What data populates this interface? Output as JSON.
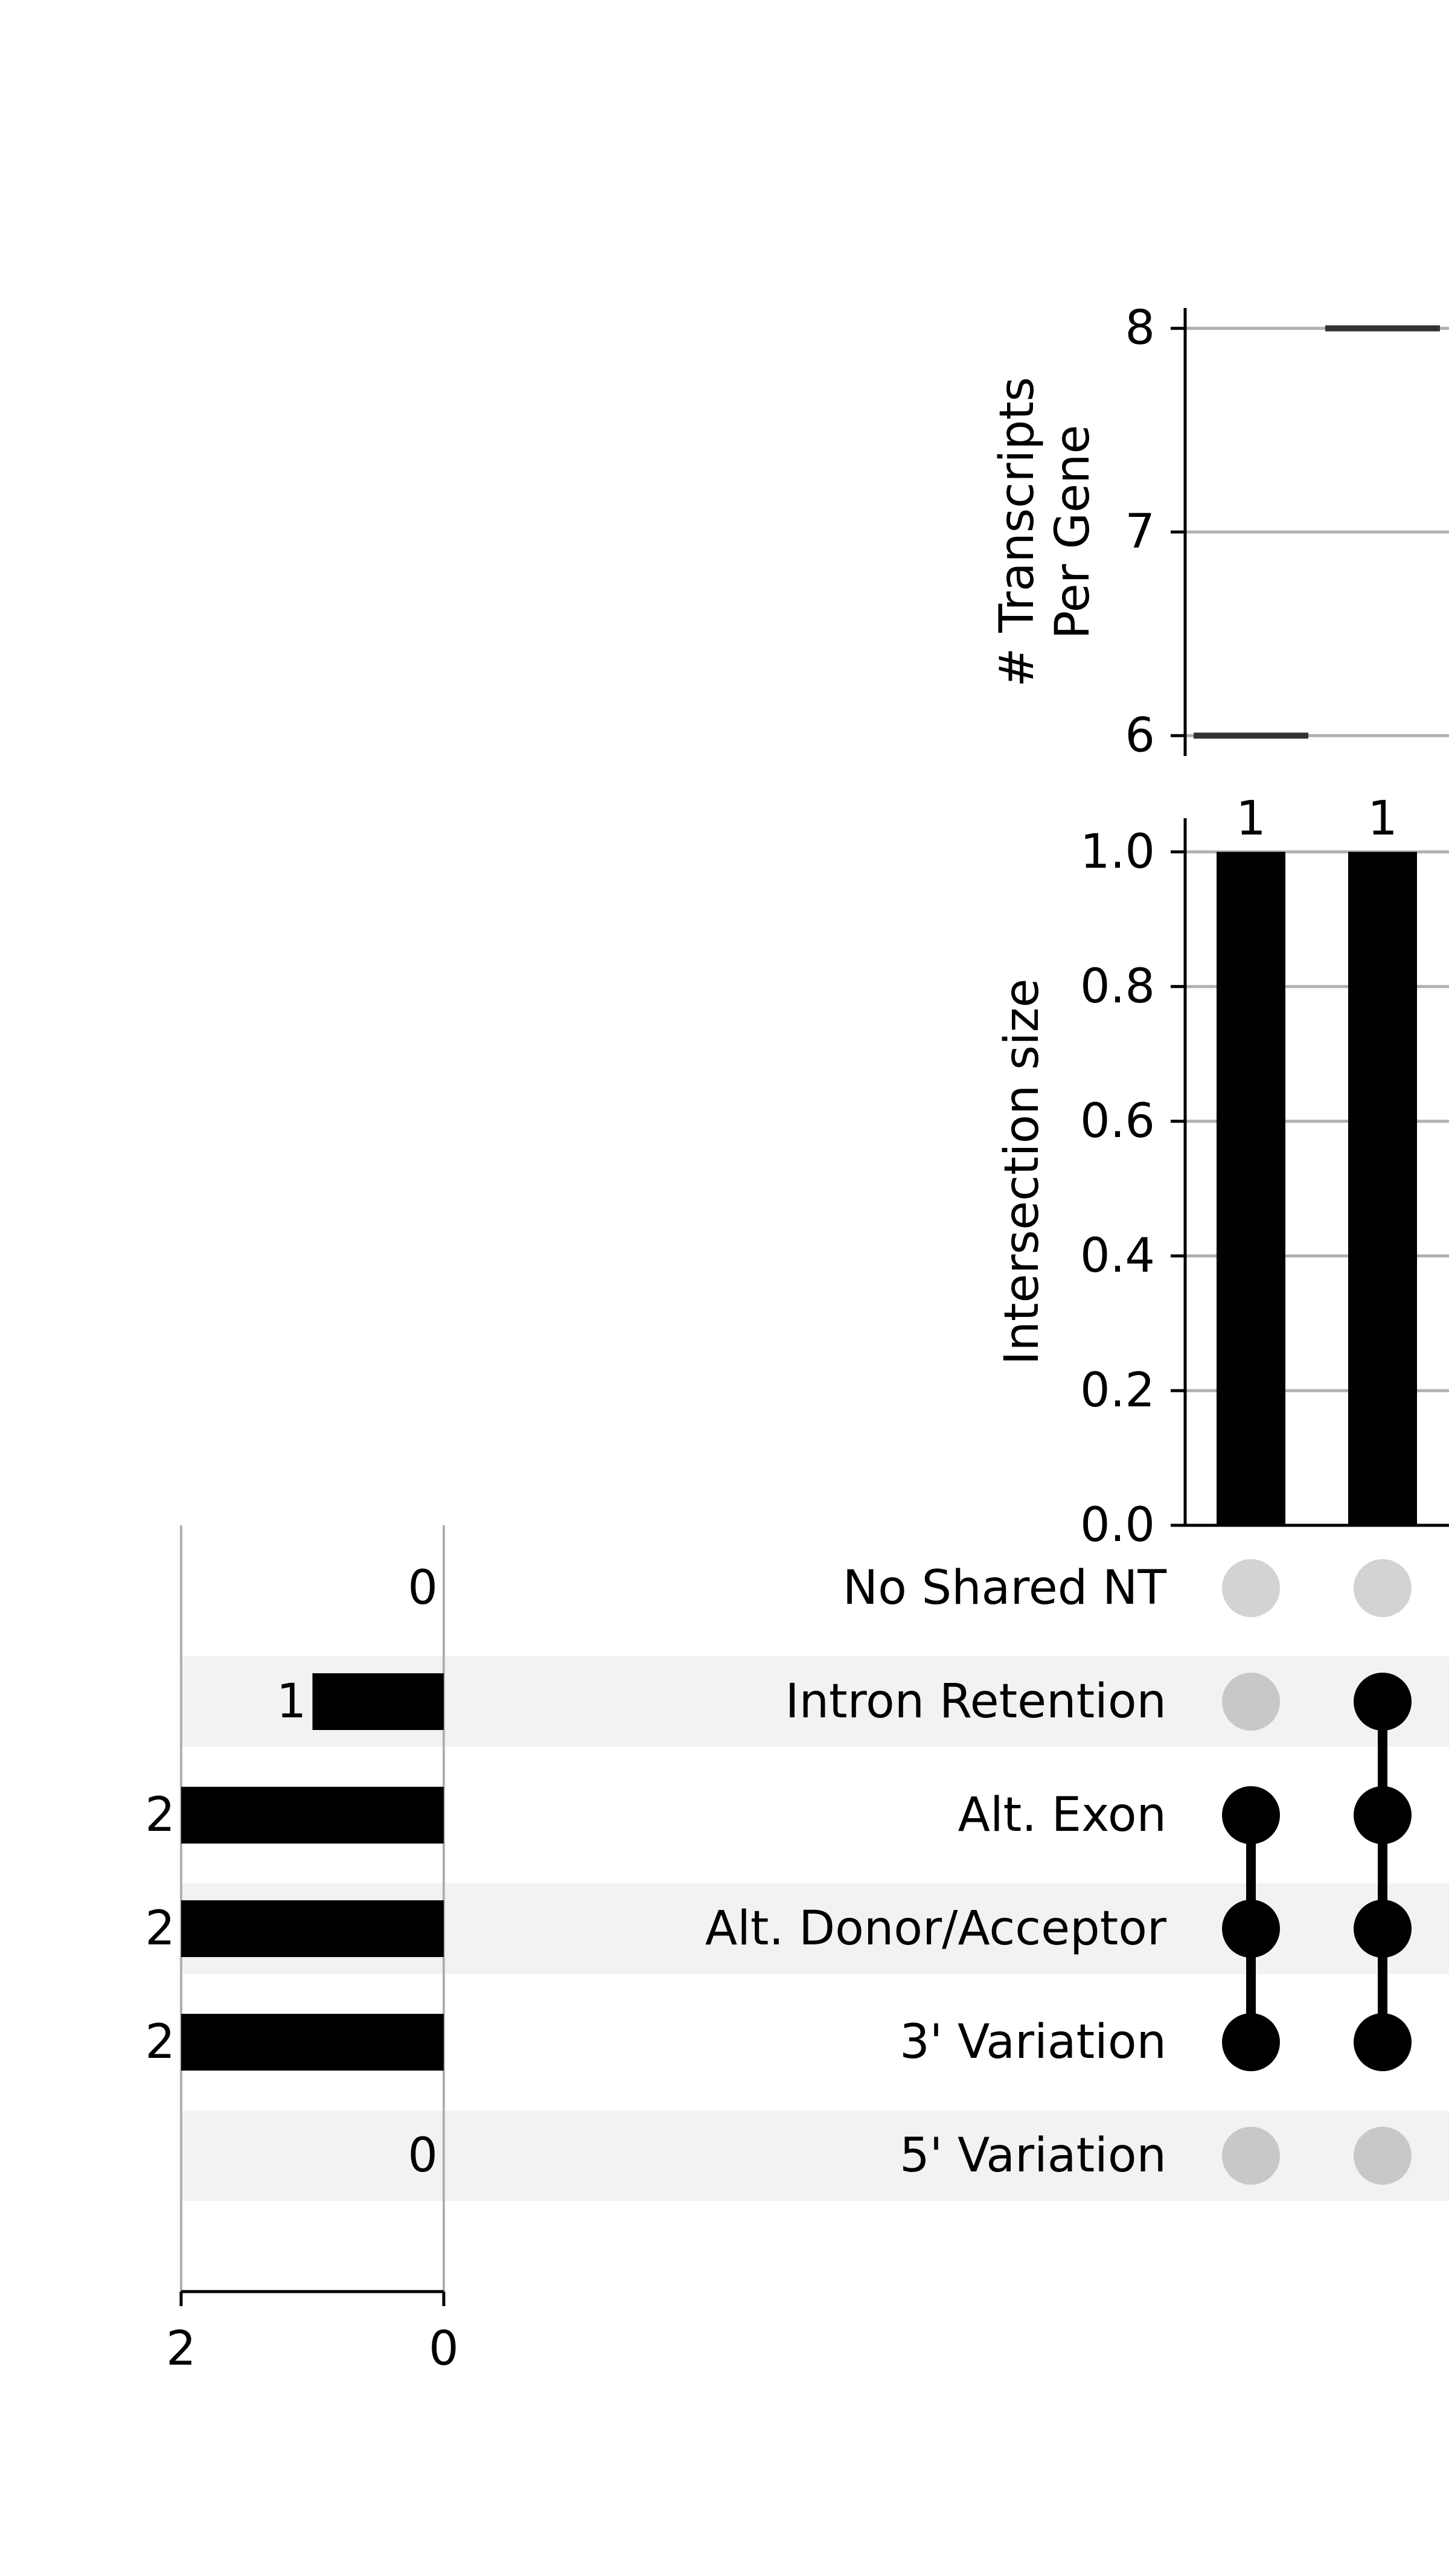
{
  "chart_data": {
    "type": "upset",
    "intersections": [
      {
        "size": 1,
        "sets": [
          "Alt. Exon",
          "Alt. Donor/Acceptor",
          "3' Variation"
        ],
        "transcripts_per_gene": 6
      },
      {
        "size": 1,
        "sets": [
          "Intron Retention",
          "Alt. Exon",
          "Alt. Donor/Acceptor",
          "3' Variation"
        ],
        "transcripts_per_gene": 8
      }
    ],
    "sets": [
      {
        "name": "No Shared NT",
        "size": 0
      },
      {
        "name": "Intron Retention",
        "size": 1
      },
      {
        "name": "Alt. Exon",
        "size": 2
      },
      {
        "name": "Alt. Donor/Acceptor",
        "size": 2
      },
      {
        "name": "3' Variation",
        "size": 2
      },
      {
        "name": "5' Variation",
        "size": 0
      }
    ],
    "transcripts_panel": {
      "ylabel": [
        "# Transcripts",
        "Per Gene"
      ],
      "ylim": [
        5.9,
        8.1
      ],
      "ticks": [
        6,
        7,
        8
      ],
      "tick_labels": [
        "6",
        "7",
        "8"
      ],
      "grid": true
    },
    "intersection_panel": {
      "ylabel": "Intersection size",
      "ylim": [
        0,
        1.05
      ],
      "ticks": [
        0.0,
        0.2,
        0.4,
        0.6,
        0.8,
        1.0
      ],
      "tick_labels": [
        "0.0",
        "0.2",
        "0.4",
        "0.6",
        "0.8",
        "1.0"
      ],
      "bar_labels": [
        "1",
        "1"
      ],
      "grid": true
    },
    "set_size_panel": {
      "xlim": [
        2,
        0
      ],
      "ticks": [
        2,
        0
      ],
      "tick_labels": [
        "2",
        "0"
      ],
      "bar_labels": [
        "0",
        "1",
        "2",
        "2",
        "2",
        "0"
      ],
      "grid": true
    },
    "colors": {
      "bar": "#000000",
      "dot_active": "#000000",
      "dot_inactive": "#c8c8c8",
      "row_shade": "#f2f2f2",
      "grid": "#b0b0b0",
      "median_line": "#333333"
    }
  }
}
